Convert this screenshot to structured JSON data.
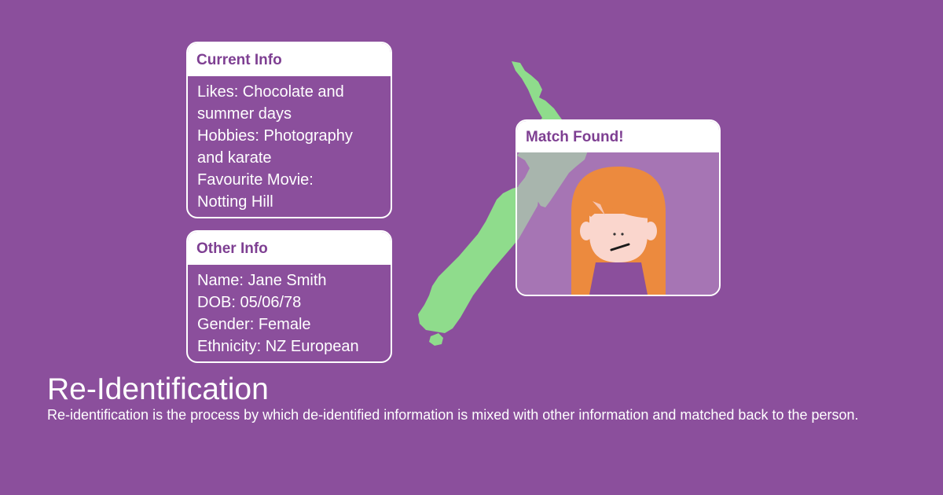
{
  "colors": {
    "background": "#8b4f9c",
    "card_header_text": "#7e3f92",
    "map": "#8fdc8c",
    "hair": "#ec8a3e",
    "skin": "#fad6cd"
  },
  "current_info": {
    "title": "Current Info",
    "lines": [
      "Likes: Chocolate and",
      "summer days",
      "Hobbies: Photography",
      "and karate",
      "Favourite Movie:",
      "Notting Hill"
    ]
  },
  "other_info": {
    "title": "Other Info",
    "lines": [
      "Name: Jane Smith",
      "DOB: 05/06/78",
      "Gender: Female",
      "Ethnicity: NZ European"
    ]
  },
  "match": {
    "title": "Match Found!",
    "icon": "woman-avatar-icon"
  },
  "map_icon": "new-zealand-map",
  "headline": "Re-Identification",
  "description": "Re-identification is the process by which de-identified information is mixed with other information and matched back to the person."
}
